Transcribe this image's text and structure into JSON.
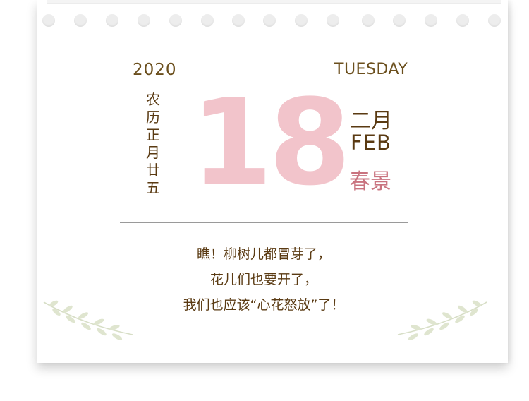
{
  "calendar": {
    "year": "2020",
    "weekday": "TUESDAY",
    "lunar_chars": [
      "农",
      "历",
      "正",
      "月",
      "廿",
      "五"
    ],
    "day": "18",
    "month_cn": "二月",
    "month_en": "FEB",
    "solar_term": "春景"
  },
  "poem": {
    "lines": [
      "瞧！柳树儿都冒芽了，",
      "花儿们也要开了，",
      "我们也应该“心花怒放”了！"
    ]
  },
  "colors": {
    "day_pink": "#f2c4cb",
    "text_brown": "#5a3a12",
    "solar_term_rose": "#c9737f",
    "leaf_green": "#d7dec6"
  },
  "icons": [
    "binder-hole-icon",
    "leaf-sprig-icon"
  ]
}
